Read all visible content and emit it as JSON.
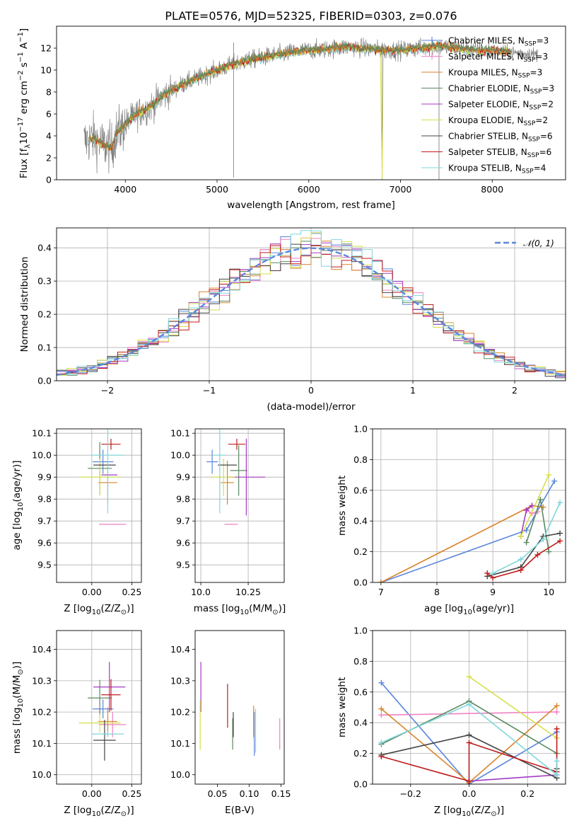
{
  "figure": {
    "title": "PLATE=0576, MJD=52325, FIBERID=0303, z=0.076"
  },
  "series_colors": {
    "chabrier_miles": "#5b86dc",
    "salpeter_miles": "#ee82c4",
    "kroupa_miles": "#d8832a",
    "chabrier_elodie": "#5a8a60",
    "salpeter_elodie": "#a33bc3",
    "kroupa_elodie": "#d6df4a",
    "chabrier_stelib": "#444444",
    "salpeter_stelib": "#c01b1b",
    "kroupa_stelib": "#7fd6dc",
    "data": "#808080",
    "gaussian": "#5b86dc"
  },
  "chart_data": [
    {
      "id": "spectrum",
      "type": "line",
      "title": "PLATE=0576, MJD=52325, FIBERID=0303, z=0.076",
      "xlabel": "wavelength [Angstrom, rest frame]",
      "ylabel_main": "Flux [f",
      "ylabel_sub": "λ",
      "ylabel_rest": "10",
      "ylabel_exp1": "−17",
      "ylabel_mid": " erg cm",
      "ylabel_exp2": "−2",
      "ylabel_mid2": " s",
      "ylabel_exp3": "−1",
      "ylabel_mid3": " A",
      "ylabel_exp4": "−1",
      "ylabel_end": "]",
      "xlim": [
        3250,
        8800
      ],
      "ylim": [
        0,
        14
      ],
      "xticks": [
        4000,
        5000,
        6000,
        7000,
        8000
      ],
      "yticks": [
        0,
        2,
        4,
        6,
        8,
        10,
        12
      ],
      "continuum": {
        "x": [
          3550,
          3650,
          3750,
          3850,
          3900,
          4000,
          4100,
          4200,
          4300,
          4400,
          4600,
          4800,
          5000,
          5200,
          5400,
          5600,
          5800,
          6000,
          6200,
          6400,
          6600,
          6800,
          7000,
          7200,
          7400,
          7600,
          7800,
          8000,
          8200,
          8400,
          8500
        ],
        "y": [
          3.5,
          3.8,
          3.2,
          2.9,
          4.2,
          5.0,
          5.9,
          6.3,
          6.8,
          7.6,
          8.6,
          9.3,
          10.0,
          10.6,
          11.0,
          11.3,
          11.6,
          11.8,
          11.9,
          12.1,
          12.0,
          11.8,
          11.8,
          12.0,
          12.2,
          12.0,
          11.8,
          11.8,
          11.6,
          11.5,
          11.4
        ]
      },
      "legend": [
        {
          "key": "chabrier_miles",
          "name": "Chabrier MILES",
          "n": "3",
          "marker": "+"
        },
        {
          "key": "salpeter_miles",
          "name": "Salpeter MILES",
          "n": "3",
          "marker": "+"
        },
        {
          "key": "kroupa_miles",
          "name": "Kroupa MILES",
          "n": "3",
          "marker": ""
        },
        {
          "key": "chabrier_elodie",
          "name": "Chabrier ELODIE",
          "n": "3",
          "marker": ""
        },
        {
          "key": "salpeter_elodie",
          "name": "Salpeter ELODIE",
          "n": "2",
          "marker": ""
        },
        {
          "key": "kroupa_elodie",
          "name": "Kroupa ELODIE",
          "n": "2",
          "marker": ""
        },
        {
          "key": "chabrier_stelib",
          "name": "Chabrier STELIB",
          "n": "6",
          "marker": ""
        },
        {
          "key": "salpeter_stelib",
          "name": "Salpeter STELIB",
          "n": "6",
          "marker": ""
        },
        {
          "key": "kroupa_stelib",
          "name": "Kroupa STELIB",
          "n": "4",
          "marker": ""
        }
      ],
      "legend_n_prefix": "N",
      "legend_n_sub": "SSP",
      "legend_placement": "right"
    },
    {
      "id": "residuals",
      "type": "histogram",
      "xlabel": "(data-model)/error",
      "ylabel": "Normed distribution",
      "xlim": [
        -2.5,
        2.5
      ],
      "ylim": [
        0,
        0.46
      ],
      "xticks": [
        -2,
        -1,
        0,
        1,
        2
      ],
      "yticks": [
        0.0,
        0.1,
        0.2,
        0.3,
        0.4
      ],
      "grid": true,
      "bin_width": 0.1,
      "gaussian_legend": "𝒩(0, 1)",
      "legend_placement": "top-right"
    },
    {
      "id": "age_vs_Z",
      "type": "scatter",
      "xlabel": "Z [log",
      "xlabel_sub": "10",
      "xlabel_rest": "(Z/Z",
      "xlabel_sub2": "⊙",
      "xlabel_end": ")]",
      "ylabel": "age  [log",
      "ylabel_sub": "10",
      "ylabel_rest": "(age/yr)]",
      "xlim": [
        -0.22,
        0.31
      ],
      "ylim": [
        9.42,
        10.12
      ],
      "xticks": [
        0.0,
        0.25
      ],
      "yticks": [
        9.5,
        9.6,
        9.7,
        9.8,
        9.9,
        10.0,
        10.1
      ],
      "grid": true,
      "points": [
        {
          "key": "chabrier_miles",
          "x": 0.07,
          "y": 9.97,
          "xerr": 0.13,
          "yerr": 0.11
        },
        {
          "key": "salpeter_miles",
          "x": 0.13,
          "y": 9.685,
          "xerr": 0.17,
          "yerr": 0.0
        },
        {
          "key": "kroupa_miles",
          "x": 0.1,
          "y": 9.875,
          "xerr": 0.12,
          "yerr": 0.2
        },
        {
          "key": "chabrier_elodie",
          "x": 0.05,
          "y": 9.94,
          "xerr": 0.15,
          "yerr": 0.24
        },
        {
          "key": "salpeter_elodie",
          "x": 0.11,
          "y": 9.91,
          "xerr": 0.1,
          "yerr": 0.0
        },
        {
          "key": "kroupa_elodie",
          "x": 0.05,
          "y": 9.9,
          "xerr": 0.26,
          "yerr": 0.17
        },
        {
          "key": "chabrier_stelib",
          "x": 0.08,
          "y": 9.955,
          "xerr": 0.14,
          "yerr": 0.0
        },
        {
          "key": "salpeter_stelib",
          "x": 0.12,
          "y": 10.05,
          "xerr": 0.12,
          "yerr": 0.05
        },
        {
          "key": "kroupa_stelib",
          "x": 0.1,
          "y": 10.0,
          "xerr": 0.2,
          "yerr": 0.53
        }
      ]
    },
    {
      "id": "age_vs_mass",
      "type": "scatter",
      "xlabel": "mass [log",
      "xlabel_sub": "10",
      "xlabel_rest": "(M/M",
      "xlabel_sub2": "⊙",
      "xlabel_end": ")]",
      "xlim": [
        9.97,
        10.44
      ],
      "ylim": [
        9.42,
        10.12
      ],
      "xticks": [
        10.0,
        10.25
      ],
      "yticks": [
        9.5,
        9.6,
        9.7,
        9.8,
        9.9,
        10.0,
        10.1
      ],
      "grid": true,
      "points": [
        {
          "key": "chabrier_miles",
          "x": 10.06,
          "y": 9.97,
          "xerr": 0.06,
          "yerr": 0.11
        },
        {
          "key": "salpeter_miles",
          "x": 10.16,
          "y": 9.685,
          "xerr": 0.07,
          "yerr": 0.0
        },
        {
          "key": "kroupa_miles",
          "x": 10.14,
          "y": 9.875,
          "xerr": 0.07,
          "yerr": 0.2
        },
        {
          "key": "chabrier_elodie",
          "x": 10.2,
          "y": 9.93,
          "xerr": 0.09,
          "yerr": 0.23
        },
        {
          "key": "salpeter_elodie",
          "x": 10.24,
          "y": 9.9,
          "xerr": 0.2,
          "yerr": 0.35
        },
        {
          "key": "kroupa_elodie",
          "x": 10.12,
          "y": 9.9,
          "xerr": 0.12,
          "yerr": 0.17
        },
        {
          "key": "chabrier_stelib",
          "x": 10.14,
          "y": 9.955,
          "xerr": 0.1,
          "yerr": 0.0
        },
        {
          "key": "salpeter_stelib",
          "x": 10.19,
          "y": 10.05,
          "xerr": 0.09,
          "yerr": 0.05
        },
        {
          "key": "kroupa_stelib",
          "x": 10.1,
          "y": 10.0,
          "xerr": 0.06,
          "yerr": 0.53
        }
      ]
    },
    {
      "id": "massweight_vs_age",
      "type": "line",
      "xlabel": "age  [log",
      "xlabel_sub": "10",
      "xlabel_rest": "(age/yr)]",
      "ylabel": "mass weight",
      "xlim": [
        6.85,
        10.3
      ],
      "ylim": [
        0,
        1.0
      ],
      "xticks": [
        7,
        8,
        9,
        10
      ],
      "yticks": [
        0.0,
        0.2,
        0.4,
        0.6,
        0.8,
        1.0
      ],
      "grid": true,
      "series": [
        {
          "key": "chabrier_miles",
          "x": [
            7.0,
            9.6,
            10.1
          ],
          "y": [
            0.0,
            0.34,
            0.66
          ]
        },
        {
          "key": "salpeter_miles",
          "x": [
            9.6,
            9.7,
            9.8
          ],
          "y": [
            0.47,
            0.45,
            0.46
          ]
        },
        {
          "key": "kroupa_miles",
          "x": [
            7.0,
            9.7,
            9.9
          ],
          "y": [
            0.0,
            0.5,
            0.49
          ]
        },
        {
          "key": "chabrier_elodie",
          "x": [
            9.6,
            9.85,
            10.0
          ],
          "y": [
            0.26,
            0.54,
            0.2
          ]
        },
        {
          "key": "salpeter_elodie",
          "x": [
            9.5,
            9.6,
            9.7
          ],
          "y": [
            0.3,
            0.47,
            0.5
          ]
        },
        {
          "key": "kroupa_elodie",
          "x": [
            9.5,
            10.0
          ],
          "y": [
            0.3,
            0.7
          ]
        },
        {
          "key": "chabrier_stelib",
          "x": [
            8.9,
            9.5,
            9.9,
            10.2
          ],
          "y": [
            0.04,
            0.1,
            0.3,
            0.32
          ]
        },
        {
          "key": "salpeter_stelib",
          "x": [
            8.9,
            9.0,
            9.5,
            9.8,
            10.2
          ],
          "y": [
            0.06,
            0.03,
            0.08,
            0.18,
            0.27
          ]
        },
        {
          "key": "kroupa_stelib",
          "x": [
            9.0,
            9.5,
            9.9,
            10.2
          ],
          "y": [
            0.06,
            0.15,
            0.28,
            0.52
          ]
        }
      ]
    },
    {
      "id": "mass_vs_Z",
      "type": "scatter",
      "xlabel": "Z [log",
      "xlabel_sub": "10",
      "xlabel_rest": "(Z/Z",
      "xlabel_sub2": "⊙",
      "xlabel_end": ")]",
      "ylabel": "mass [log",
      "ylabel_sub": "10",
      "ylabel_rest": "(M/M",
      "ylabel_sub2": "⊙",
      "ylabel_end": ")]",
      "xlim": [
        -0.22,
        0.31
      ],
      "ylim": [
        9.97,
        10.46
      ],
      "xticks": [
        0.0,
        0.25
      ],
      "yticks": [
        10.0,
        10.1,
        10.2,
        10.3,
        10.4
      ],
      "grid": true,
      "points": [
        {
          "key": "chabrier_miles",
          "x": 0.07,
          "y": 10.21,
          "xerr": 0.13,
          "yerr": 0.06
        },
        {
          "key": "salpeter_miles",
          "x": 0.13,
          "y": 10.16,
          "xerr": 0.17,
          "yerr": 0.08
        },
        {
          "key": "kroupa_miles",
          "x": 0.1,
          "y": 10.17,
          "xerr": 0.12,
          "yerr": 0.09
        },
        {
          "key": "chabrier_elodie",
          "x": 0.05,
          "y": 10.245,
          "xerr": 0.15,
          "yerr": 0.115
        },
        {
          "key": "salpeter_elodie",
          "x": 0.11,
          "y": 10.28,
          "xerr": 0.2,
          "yerr": 0.16
        },
        {
          "key": "kroupa_elodie",
          "x": 0.05,
          "y": 10.165,
          "xerr": 0.26,
          "yerr": 0.06
        },
        {
          "key": "chabrier_stelib",
          "x": 0.08,
          "y": 10.11,
          "xerr": 0.14,
          "yerr": 0.13
        },
        {
          "key": "salpeter_stelib",
          "x": 0.12,
          "y": 10.255,
          "xerr": 0.12,
          "yerr": 0.1
        },
        {
          "key": "kroupa_stelib",
          "x": 0.1,
          "y": 10.13,
          "xerr": 0.2,
          "yerr": 0.02
        }
      ]
    },
    {
      "id": "mass_vs_ebv",
      "type": "scatter",
      "xlabel": "E(B-V)",
      "xlim": [
        0.015,
        0.155
      ],
      "ylim": [
        9.97,
        10.46
      ],
      "xticks": [
        0.05,
        0.1,
        0.15
      ],
      "yticks": [
        10.0,
        10.1,
        10.2,
        10.3,
        10.4
      ],
      "grid": false,
      "points": [
        {
          "key": "chabrier_miles",
          "x": 0.108,
          "y": 10.13,
          "yerr": 0.14
        },
        {
          "key": "salpeter_miles",
          "x": 0.148,
          "y": 10.13,
          "yerr": 0.1
        },
        {
          "key": "kroupa_miles",
          "x": 0.107,
          "y": 10.17,
          "yerr": 0.1
        },
        {
          "key": "chabrier_elodie",
          "x": 0.074,
          "y": 10.13,
          "yerr": 0.1
        },
        {
          "key": "salpeter_elodie",
          "x": 0.024,
          "y": 10.28,
          "yerr": 0.16
        },
        {
          "key": "kroupa_elodie",
          "x": 0.023,
          "y": 10.16,
          "yerr": 0.16
        },
        {
          "key": "chabrier_stelib",
          "x": 0.075,
          "y": 10.16,
          "yerr": 0.08
        },
        {
          "key": "salpeter_stelib",
          "x": 0.066,
          "y": 10.22,
          "yerr": 0.14
        },
        {
          "key": "kroupa_stelib",
          "x": 0.11,
          "y": 10.14,
          "yerr": 0.14
        }
      ]
    },
    {
      "id": "massweight_vs_Z",
      "type": "line",
      "xlabel": "Z [log",
      "xlabel_sub": "10",
      "xlabel_rest": "(Z/Z",
      "xlabel_sub2": "⊙",
      "xlabel_end": ")]",
      "ylabel": "mass weight",
      "xlim": [
        -0.33,
        0.33
      ],
      "ylim": [
        0,
        1.0
      ],
      "xticks": [
        -0.2,
        0.0,
        0.2
      ],
      "yticks": [
        0.0,
        0.2,
        0.4,
        0.6,
        0.8,
        1.0
      ],
      "grid": true,
      "series": [
        {
          "key": "chabrier_miles",
          "x": [
            -0.3,
            0.0,
            0.3
          ],
          "y": [
            0.66,
            0.0,
            0.34
          ]
        },
        {
          "key": "salpeter_miles",
          "x": [
            -0.3,
            0.3
          ],
          "y": [
            0.45,
            0.47
          ]
        },
        {
          "key": "kroupa_miles",
          "x": [
            -0.3,
            0.0,
            0.3
          ],
          "y": [
            0.49,
            0.01,
            0.51
          ]
        },
        {
          "key": "chabrier_elodie",
          "x": [
            -0.3,
            0.0,
            0.3
          ],
          "y": [
            0.26,
            0.54,
            0.2
          ]
        },
        {
          "key": "salpeter_elodie",
          "x": [
            0.0,
            0.3
          ],
          "y": [
            0.02,
            0.06
          ]
        },
        {
          "key": "kroupa_elodie",
          "x": [
            0.0,
            0.3
          ],
          "y": [
            0.7,
            0.3
          ]
        },
        {
          "key": "chabrier_stelib",
          "x": [
            -0.3,
            0.0,
            0.3,
            0.3
          ],
          "y": [
            0.19,
            0.32,
            0.04,
            0.1
          ]
        },
        {
          "key": "salpeter_stelib",
          "x": [
            -0.3,
            0.0,
            0.0,
            0.3,
            0.3
          ],
          "y": [
            0.18,
            0.02,
            0.27,
            0.08,
            0.36
          ]
        },
        {
          "key": "kroupa_stelib",
          "x": [
            -0.3,
            0.0,
            0.3,
            0.3
          ],
          "y": [
            0.27,
            0.52,
            0.06,
            0.15
          ]
        }
      ]
    }
  ]
}
